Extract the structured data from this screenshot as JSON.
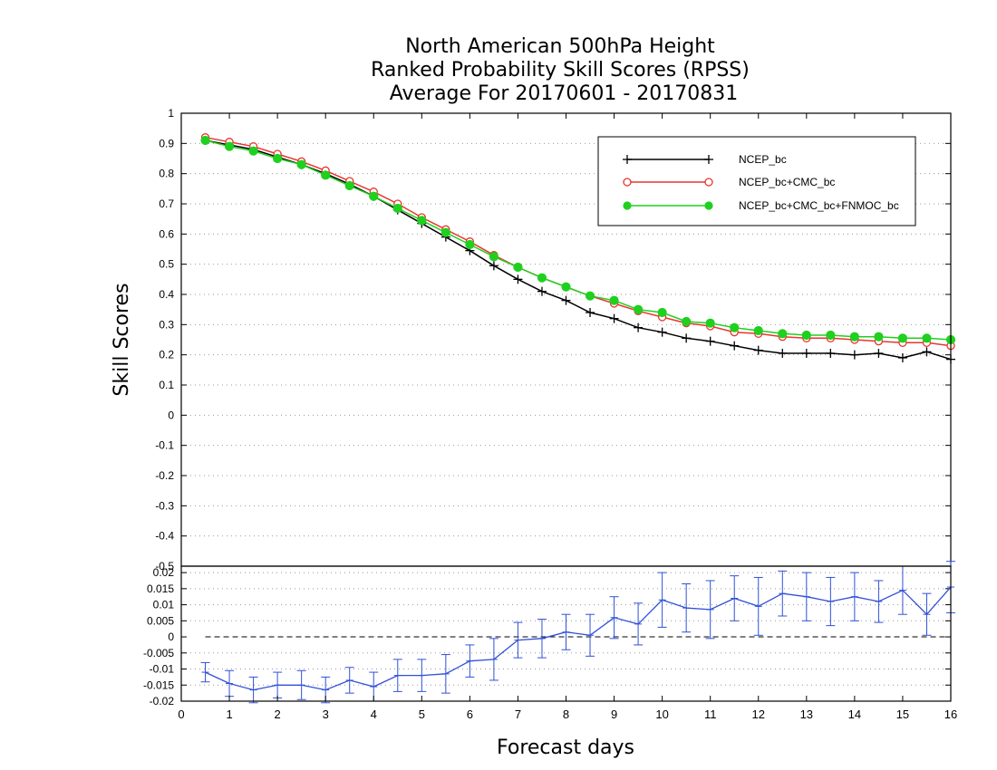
{
  "title_lines": [
    "North American 500hPa Height",
    "Ranked Probability Skill Scores (RPSS)",
    "Average For 20170601 - 20170831"
  ],
  "chart_data": [
    {
      "type": "line",
      "ylabel": "Skill Scores",
      "xlim": [
        0,
        16
      ],
      "ylim": [
        -0.5,
        1
      ],
      "yticks": [
        "1",
        "0.9",
        "0.8",
        "0.7",
        "0.6",
        "0.5",
        "0.4",
        "0.3",
        "0.2",
        "0.1",
        "0",
        "-0.1",
        "-0.2",
        "-0.3",
        "-0.4",
        "-0.5"
      ],
      "grid": "dotted",
      "legend_position": "top-right",
      "x": [
        0.5,
        1,
        1.5,
        2,
        2.5,
        3,
        3.5,
        4,
        4.5,
        5,
        5.5,
        6,
        6.5,
        7,
        7.5,
        8,
        8.5,
        9,
        9.5,
        10,
        10.5,
        11,
        11.5,
        12,
        12.5,
        13,
        13.5,
        14,
        14.5,
        15,
        15.5,
        16
      ],
      "series": [
        {
          "name": "NCEP_bc",
          "color": "#000000",
          "marker": "plus",
          "values": [
            0.91,
            0.895,
            0.88,
            0.855,
            0.83,
            0.8,
            0.765,
            0.725,
            0.68,
            0.635,
            0.59,
            0.545,
            0.495,
            0.45,
            0.41,
            0.38,
            0.34,
            0.32,
            0.29,
            0.275,
            0.255,
            0.245,
            0.23,
            0.215,
            0.205,
            0.205,
            0.205,
            0.2,
            0.205,
            0.19,
            0.21,
            0.185
          ]
        },
        {
          "name": "NCEP_bc+CMC_bc",
          "color": "#e8352f",
          "marker": "open-circle",
          "values": [
            0.92,
            0.905,
            0.89,
            0.865,
            0.84,
            0.81,
            0.775,
            0.74,
            0.7,
            0.655,
            0.615,
            0.575,
            0.53,
            0.49,
            0.455,
            0.425,
            0.395,
            0.37,
            0.345,
            0.325,
            0.305,
            0.295,
            0.275,
            0.27,
            0.26,
            0.255,
            0.255,
            0.25,
            0.245,
            0.24,
            0.24,
            0.23
          ]
        },
        {
          "name": "NCEP_bc+CMC_bc+FNMOC_bc",
          "color": "#1fd01f",
          "marker": "filled-circle",
          "values": [
            0.91,
            0.89,
            0.875,
            0.85,
            0.83,
            0.795,
            0.76,
            0.725,
            0.685,
            0.645,
            0.605,
            0.565,
            0.525,
            0.49,
            0.455,
            0.425,
            0.395,
            0.38,
            0.35,
            0.34,
            0.31,
            0.305,
            0.29,
            0.28,
            0.27,
            0.265,
            0.265,
            0.26,
            0.26,
            0.255,
            0.255,
            0.25
          ]
        }
      ]
    },
    {
      "type": "line",
      "xlabel": "Forecast days",
      "xlim": [
        0,
        16
      ],
      "ylim": [
        -0.02,
        0.022
      ],
      "yticks": [
        "0.02",
        "0.015",
        "0.01",
        "0.005",
        "0",
        "-0.005",
        "-0.01",
        "-0.015",
        "-0.02"
      ],
      "xticks": [
        "0",
        "1",
        "2",
        "3",
        "4",
        "5",
        "6",
        "7",
        "8",
        "9",
        "10",
        "11",
        "12",
        "13",
        "14",
        "15",
        "16"
      ],
      "grid": "dotted",
      "zero_line": "dashed",
      "x": [
        0.5,
        1,
        1.5,
        2,
        2.5,
        3,
        3.5,
        4,
        4.5,
        5,
        5.5,
        6,
        6.5,
        7,
        7.5,
        8,
        8.5,
        9,
        9.5,
        10,
        10.5,
        11,
        11.5,
        12,
        12.5,
        13,
        13.5,
        14,
        14.5,
        15,
        15.5,
        16
      ],
      "series": [
        {
          "color": "#3050d8",
          "marker": "error-bar",
          "values": [
            -0.011,
            -0.0145,
            -0.0165,
            -0.015,
            -0.015,
            -0.0165,
            -0.0135,
            -0.0155,
            -0.012,
            -0.012,
            -0.0115,
            -0.0075,
            -0.007,
            -0.001,
            -0.0005,
            0.0015,
            0.0005,
            0.006,
            0.004,
            0.0115,
            0.009,
            0.0085,
            0.012,
            0.0095,
            0.0135,
            0.0125,
            0.011,
            0.0125,
            0.011,
            0.0145,
            0.007,
            0.0155
          ],
          "err": [
            0.003,
            0.004,
            0.004,
            0.004,
            0.0045,
            0.004,
            0.004,
            0.0045,
            0.005,
            0.005,
            0.006,
            0.005,
            0.0065,
            0.0055,
            0.006,
            0.0055,
            0.0065,
            0.0065,
            0.0065,
            0.0085,
            0.0075,
            0.009,
            0.007,
            0.009,
            0.007,
            0.0075,
            0.0075,
            0.0075,
            0.0065,
            0.0075,
            0.0065,
            0.008
          ]
        }
      ]
    }
  ]
}
